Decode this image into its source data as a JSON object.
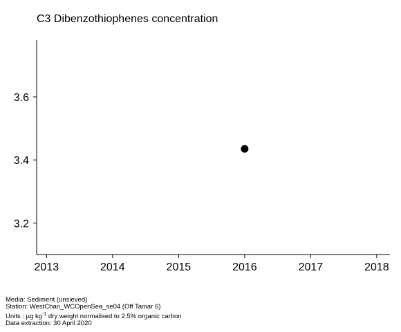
{
  "chart_data": {
    "type": "scatter",
    "title": "C3 Dibenzothiophenes concentration",
    "xlabel": "",
    "ylabel": "",
    "x_ticks": [
      "2013",
      "2014",
      "2015",
      "2016",
      "2017",
      "2018"
    ],
    "y_ticks": [
      "3.2",
      "3.4",
      "3.6"
    ],
    "xlim": [
      2012.85,
      2018.2
    ],
    "ylim": [
      3.1,
      3.78
    ],
    "grid": false,
    "series": [
      {
        "points": [
          {
            "x": 2016,
            "y": 3.435
          }
        ]
      }
    ],
    "marker_color": "#000000"
  },
  "footer": {
    "media": "Media: Sediment (unsieved)",
    "station": "Station: WestChan_WCOpenSea_se04 (Off Tamar 6)",
    "units_prefix": "Units : µg kg",
    "units_exponent": "-1",
    "units_suffix": " dry weight normalised to 2.5% organic carbon",
    "extraction": "Data extraction: 30 April 2020"
  }
}
